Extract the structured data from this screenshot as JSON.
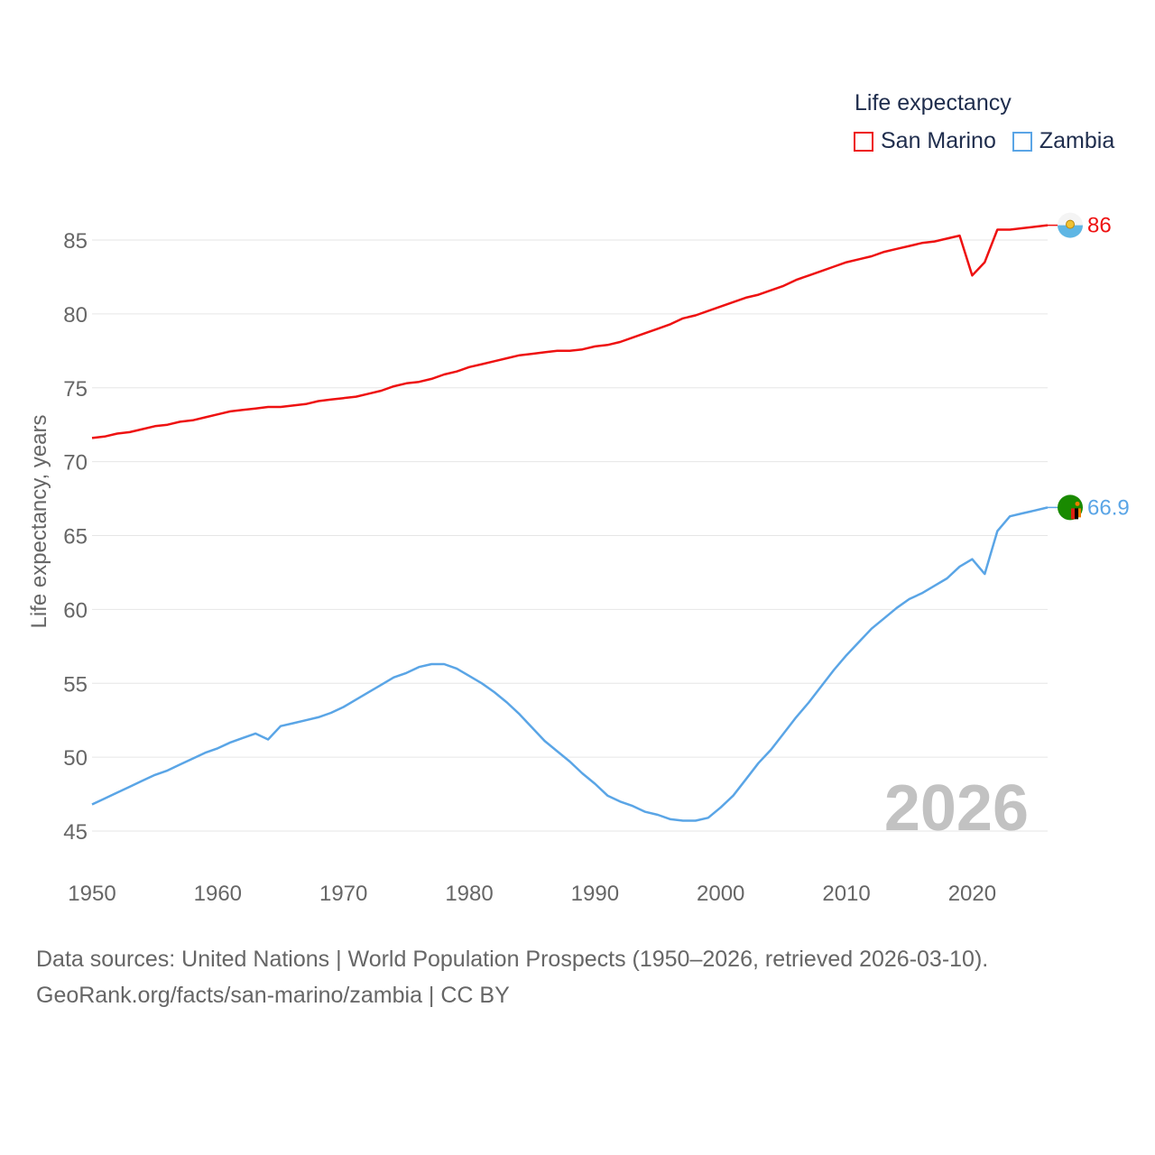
{
  "legend": {
    "title": "Life expectancy",
    "items": [
      {
        "label": "San Marino",
        "color": "#ee1111"
      },
      {
        "label": "Zambia",
        "color": "#5aa5e6"
      }
    ]
  },
  "current_year_label": "2026",
  "source": {
    "line1": "Data sources: United Nations | World Population Prospects (1950–2026, retrieved 2026-03-10).",
    "line2": "GeoRank.org/facts/san-marino/zambia | CC BY"
  },
  "chart_data": {
    "type": "line",
    "title": "Life expectancy",
    "xlabel": "",
    "ylabel": "Life expectancy, years",
    "xlim": [
      1950,
      2026
    ],
    "ylim": [
      45,
      87
    ],
    "x_ticks": [
      1950,
      1960,
      1970,
      1980,
      1990,
      2000,
      2010,
      2020
    ],
    "y_ticks": [
      45,
      50,
      55,
      60,
      65,
      70,
      75,
      80,
      85
    ],
    "grid": true,
    "legend_position": "top-right",
    "x": [
      1950,
      1951,
      1952,
      1953,
      1954,
      1955,
      1956,
      1957,
      1958,
      1959,
      1960,
      1961,
      1962,
      1963,
      1964,
      1965,
      1966,
      1967,
      1968,
      1969,
      1970,
      1971,
      1972,
      1973,
      1974,
      1975,
      1976,
      1977,
      1978,
      1979,
      1980,
      1981,
      1982,
      1983,
      1984,
      1985,
      1986,
      1987,
      1988,
      1989,
      1990,
      1991,
      1992,
      1993,
      1994,
      1995,
      1996,
      1997,
      1998,
      1999,
      2000,
      2001,
      2002,
      2003,
      2004,
      2005,
      2006,
      2007,
      2008,
      2009,
      2010,
      2011,
      2012,
      2013,
      2014,
      2015,
      2016,
      2017,
      2018,
      2019,
      2020,
      2021,
      2022,
      2023,
      2024,
      2025,
      2026
    ],
    "series": [
      {
        "name": "San Marino",
        "color": "#ee1111",
        "end_label": "86",
        "flag": "san-marino-flag-icon",
        "values": [
          71.6,
          71.7,
          71.9,
          72.0,
          72.2,
          72.4,
          72.5,
          72.7,
          72.8,
          73.0,
          73.2,
          73.4,
          73.5,
          73.6,
          73.7,
          73.7,
          73.8,
          73.9,
          74.1,
          74.2,
          74.3,
          74.4,
          74.6,
          74.8,
          75.1,
          75.3,
          75.4,
          75.6,
          75.9,
          76.1,
          76.4,
          76.6,
          76.8,
          77.0,
          77.2,
          77.3,
          77.4,
          77.5,
          77.5,
          77.6,
          77.8,
          77.9,
          78.1,
          78.4,
          78.7,
          79.0,
          79.3,
          79.7,
          79.9,
          80.2,
          80.5,
          80.8,
          81.1,
          81.3,
          81.6,
          81.9,
          82.3,
          82.6,
          82.9,
          83.2,
          83.5,
          83.7,
          83.9,
          84.2,
          84.4,
          84.6,
          84.8,
          84.9,
          85.1,
          85.3,
          82.6,
          83.5,
          85.7,
          85.7,
          85.8,
          85.9,
          86.0
        ]
      },
      {
        "name": "Zambia",
        "color": "#5aa5e6",
        "end_label": "66.9",
        "flag": "zambia-flag-icon",
        "values": [
          46.8,
          47.2,
          47.6,
          48.0,
          48.4,
          48.8,
          49.1,
          49.5,
          49.9,
          50.3,
          50.6,
          51.0,
          51.3,
          51.6,
          51.2,
          52.1,
          52.3,
          52.5,
          52.7,
          53.0,
          53.4,
          53.9,
          54.4,
          54.9,
          55.4,
          55.7,
          56.1,
          56.3,
          56.3,
          56.0,
          55.5,
          55.0,
          54.4,
          53.7,
          52.9,
          52.0,
          51.1,
          50.4,
          49.7,
          48.9,
          48.2,
          47.4,
          47.0,
          46.7,
          46.3,
          46.1,
          45.8,
          45.7,
          45.7,
          45.9,
          46.6,
          47.4,
          48.5,
          49.6,
          50.5,
          51.6,
          52.7,
          53.7,
          54.8,
          55.9,
          56.9,
          57.8,
          58.7,
          59.4,
          60.1,
          60.7,
          61.1,
          61.6,
          62.1,
          62.9,
          63.4,
          62.4,
          65.3,
          66.3,
          66.5,
          66.7,
          66.9
        ]
      }
    ]
  }
}
